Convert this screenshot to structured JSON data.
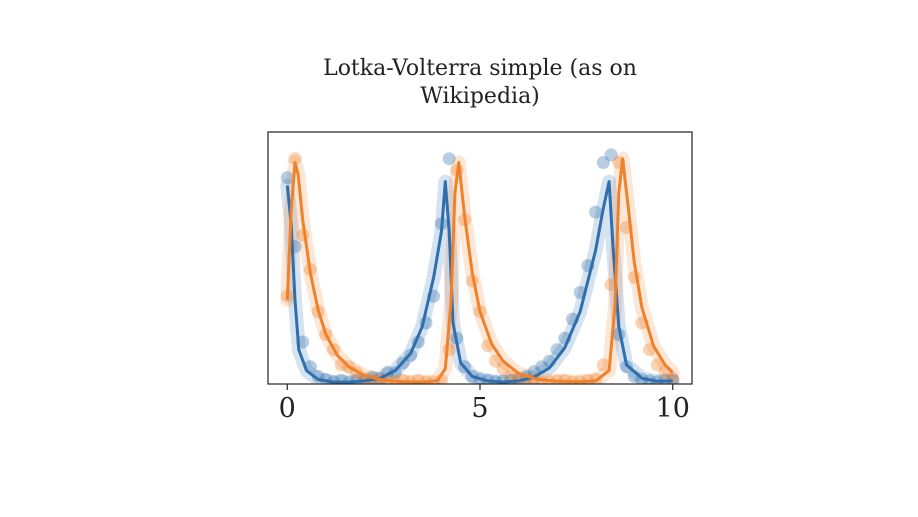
{
  "chart_data": {
    "type": "line",
    "title": "Lotka-Volterra simple (as on Wikipedia)",
    "xlabel": "",
    "ylabel": "",
    "xlim": [
      -0.5,
      10.5
    ],
    "ylim": [
      0,
      6.6
    ],
    "x_ticks": [
      "0",
      "5",
      "10"
    ],
    "grid": false,
    "y_ticks_shown": false,
    "colors": {
      "prey": "#2f6fad",
      "predator": "#f0812b"
    },
    "series": [
      {
        "role": "prey_fit_line",
        "color": "#2f6fad",
        "x": [
          0,
          0.1,
          0.2,
          0.3,
          0.5,
          0.8,
          1.2,
          1.6,
          2.0,
          2.4,
          2.8,
          3.2,
          3.5,
          3.8,
          4.0,
          4.1,
          4.2,
          4.3,
          4.5,
          4.8,
          5.2,
          5.6,
          6.0,
          6.4,
          6.8,
          7.2,
          7.6,
          8.0,
          8.2,
          8.35,
          8.45,
          8.6,
          8.8,
          9.2,
          9.6,
          10.0
        ],
        "y": [
          5.2,
          4.2,
          2.2,
          0.9,
          0.35,
          0.12,
          0.05,
          0.05,
          0.08,
          0.15,
          0.35,
          0.8,
          1.5,
          2.8,
          4.0,
          5.3,
          4.0,
          1.6,
          0.55,
          0.2,
          0.08,
          0.05,
          0.08,
          0.18,
          0.42,
          0.95,
          1.9,
          3.5,
          4.6,
          5.3,
          3.6,
          1.5,
          0.5,
          0.15,
          0.07,
          0.08
        ]
      },
      {
        "role": "predator_fit_line",
        "color": "#f0812b",
        "x": [
          0,
          0.1,
          0.2,
          0.28,
          0.4,
          0.6,
          0.8,
          1.0,
          1.3,
          1.6,
          2.0,
          2.5,
          3.0,
          3.5,
          3.9,
          4.1,
          4.25,
          4.35,
          4.45,
          4.6,
          4.8,
          5.0,
          5.3,
          5.6,
          6.0,
          6.5,
          7.0,
          7.5,
          8.0,
          8.35,
          8.5,
          8.6,
          8.7,
          8.85,
          9.0,
          9.2,
          9.5,
          9.8,
          10.0
        ],
        "y": [
          2.2,
          4.5,
          5.8,
          5.5,
          4.3,
          2.9,
          1.95,
          1.3,
          0.75,
          0.45,
          0.22,
          0.1,
          0.06,
          0.05,
          0.09,
          0.4,
          2.2,
          5.0,
          5.8,
          4.4,
          2.9,
          1.9,
          1.05,
          0.6,
          0.28,
          0.12,
          0.07,
          0.06,
          0.08,
          0.35,
          2.0,
          5.0,
          5.9,
          4.6,
          3.2,
          2.0,
          1.0,
          0.5,
          0.3
        ]
      },
      {
        "role": "prey_observations",
        "color": "#2f6fad",
        "x": [
          0,
          0.2,
          0.4,
          0.6,
          0.8,
          1.0,
          1.2,
          1.4,
          1.6,
          1.8,
          2.0,
          2.2,
          2.4,
          2.6,
          2.8,
          3.0,
          3.2,
          3.4,
          3.6,
          3.8,
          4.0,
          4.2,
          4.4,
          4.6,
          4.8,
          5.0,
          5.2,
          5.4,
          5.6,
          5.8,
          6.0,
          6.2,
          6.4,
          6.6,
          6.8,
          7.0,
          7.2,
          7.4,
          7.6,
          7.8,
          8.0,
          8.2,
          8.4,
          8.6,
          8.8,
          9.0,
          9.2,
          9.4,
          9.6,
          9.8,
          10.0
        ],
        "y": [
          5.4,
          3.6,
          1.1,
          0.45,
          0.2,
          0.12,
          0.06,
          0.1,
          0.04,
          0.1,
          0.08,
          0.18,
          0.14,
          0.3,
          0.3,
          0.55,
          0.75,
          1.1,
          1.6,
          2.3,
          4.2,
          5.9,
          1.2,
          0.45,
          0.2,
          0.12,
          0.1,
          0.06,
          0.08,
          0.1,
          0.1,
          0.2,
          0.32,
          0.45,
          0.6,
          0.9,
          1.2,
          1.7,
          2.4,
          3.1,
          4.5,
          5.8,
          6.0,
          1.3,
          0.45,
          0.2,
          0.12,
          0.08,
          0.06,
          0.1,
          0.1
        ]
      },
      {
        "role": "predator_observations",
        "color": "#f0812b",
        "x": [
          0,
          0.2,
          0.4,
          0.6,
          0.8,
          1.0,
          1.2,
          1.4,
          1.6,
          1.8,
          2.0,
          2.2,
          2.4,
          2.6,
          2.8,
          3.0,
          3.2,
          3.4,
          3.6,
          3.8,
          4.0,
          4.2,
          4.4,
          4.6,
          4.8,
          5.0,
          5.2,
          5.4,
          5.6,
          5.8,
          6.0,
          6.2,
          6.4,
          6.6,
          6.8,
          7.0,
          7.2,
          7.4,
          7.6,
          7.8,
          8.0,
          8.2,
          8.4,
          8.6,
          8.8,
          9.0,
          9.2,
          9.4,
          9.6,
          9.8,
          10.0
        ],
        "y": [
          2.3,
          5.9,
          3.9,
          3.0,
          1.9,
          1.3,
          0.9,
          0.5,
          0.45,
          0.3,
          0.15,
          0.1,
          0.1,
          0.05,
          0.05,
          0.1,
          0.05,
          0.1,
          0.05,
          0.05,
          0.1,
          0.9,
          5.6,
          4.3,
          2.7,
          1.9,
          1.0,
          0.6,
          0.4,
          0.2,
          0.15,
          0.08,
          0.1,
          0.05,
          0.05,
          0.08,
          0.1,
          0.05,
          0.06,
          0.1,
          0.12,
          0.5,
          2.6,
          5.8,
          4.1,
          2.8,
          1.6,
          0.9,
          0.5,
          0.3,
          0.15
        ]
      }
    ]
  }
}
